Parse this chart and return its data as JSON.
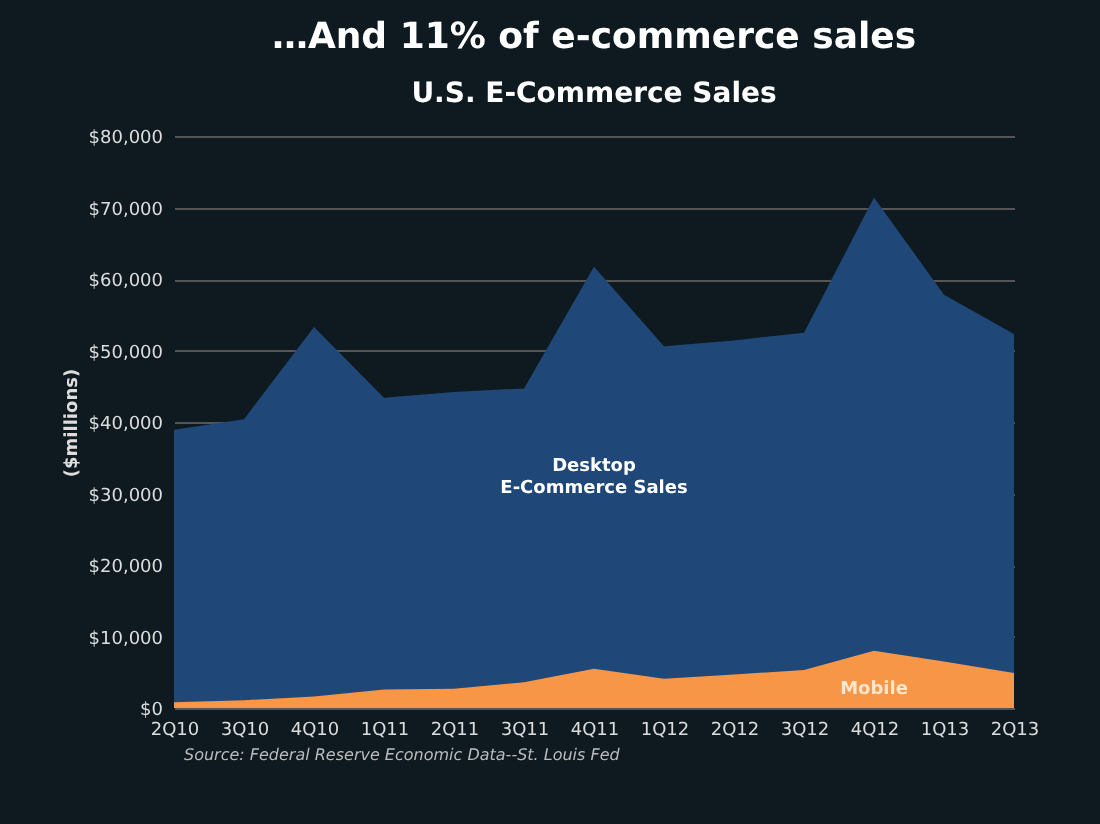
{
  "chart_data": {
    "type": "area",
    "title": "…And 11% of e-commerce sales",
    "subtitle": "U.S. E-Commerce Sales",
    "ylabel": "($millions)",
    "categories": [
      "2Q10",
      "3Q10",
      "4Q10",
      "1Q11",
      "2Q11",
      "3Q11",
      "4Q11",
      "1Q12",
      "2Q12",
      "3Q12",
      "4Q12",
      "1Q13",
      "2Q13"
    ],
    "series": [
      {
        "name": "Desktop\nE-Commerce Sales",
        "color": "#1f4778",
        "values": [
          38900,
          40400,
          53300,
          43400,
          44200,
          44700,
          61700,
          50600,
          51400,
          52500,
          71400,
          57800,
          52300
        ]
      },
      {
        "name": "Mobile",
        "color": "#f79646",
        "values": [
          800,
          1100,
          1600,
          2600,
          2700,
          3600,
          5500,
          4100,
          4700,
          5300,
          8000,
          6500,
          4900
        ]
      }
    ],
    "ylim": [
      0,
      80000
    ],
    "yticks": [
      {
        "value": 0,
        "label": "$0"
      },
      {
        "value": 10000,
        "label": "$10,000"
      },
      {
        "value": 20000,
        "label": "$20,000"
      },
      {
        "value": 30000,
        "label": "$30,000"
      },
      {
        "value": 40000,
        "label": "$40,000"
      },
      {
        "value": 50000,
        "label": "$50,000"
      },
      {
        "value": 60000,
        "label": "$60,000"
      },
      {
        "value": 70000,
        "label": "$70,000"
      },
      {
        "value": 80000,
        "label": "$80,000"
      }
    ],
    "grid": "y",
    "annotations": [
      "Source: Federal Reserve Economic Data--St. Louis Fed"
    ]
  }
}
